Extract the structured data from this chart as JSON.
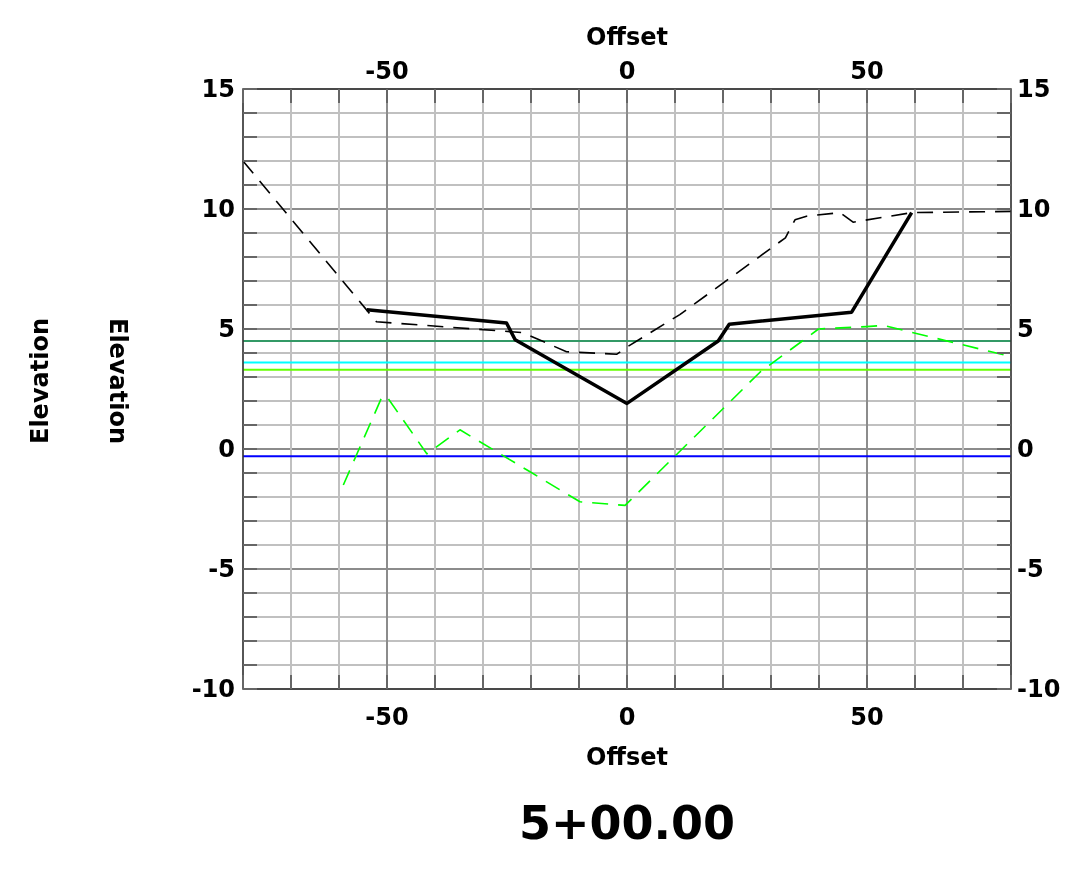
{
  "chart_data": {
    "type": "line",
    "title": "5+00.00",
    "xlabel": "Offset",
    "x2label": "Offset",
    "ylabel": "Elevation",
    "annotations": [
      "Elevation"
    ],
    "xlim": [
      -80,
      80
    ],
    "x2lim": [
      -80,
      80
    ],
    "ylim": [
      -10,
      15
    ],
    "y2lim": [
      -10,
      15
    ],
    "xticks": [
      {
        "value": -80,
        "label": null
      },
      {
        "value": -70,
        "label": null
      },
      {
        "value": -60,
        "label": null
      },
      -50,
      {
        "value": -40,
        "label": null
      },
      {
        "value": -30,
        "label": null
      },
      {
        "value": -20,
        "label": null
      },
      {
        "value": -10,
        "label": null
      },
      0,
      {
        "value": 10,
        "label": null
      },
      {
        "value": 20,
        "label": null
      },
      {
        "value": 30,
        "label": null
      },
      {
        "value": 40,
        "label": null
      },
      50,
      {
        "value": 60,
        "label": null
      },
      {
        "value": 70,
        "label": null
      },
      {
        "value": 80,
        "label": null
      }
    ],
    "x2ticks": [
      {
        "value": -80,
        "label": null
      },
      {
        "value": -70,
        "label": null
      },
      {
        "value": -60,
        "label": null
      },
      -50,
      {
        "value": -40,
        "label": null
      },
      {
        "value": -30,
        "label": null
      },
      {
        "value": -20,
        "label": null
      },
      {
        "value": -10,
        "label": null
      },
      0,
      {
        "value": 10,
        "label": null
      },
      {
        "value": 20,
        "label": null
      },
      {
        "value": 30,
        "label": null
      },
      {
        "value": 40,
        "label": null
      },
      50,
      {
        "value": 60,
        "label": null
      },
      {
        "value": 70,
        "label": null
      },
      {
        "value": 80,
        "label": null
      }
    ],
    "yticks": [
      -10,
      {
        "value": -9,
        "label": null
      },
      {
        "value": -8,
        "label": null
      },
      {
        "value": -7,
        "label": null
      },
      {
        "value": -6,
        "label": null
      },
      -5,
      {
        "value": -4,
        "label": null
      },
      {
        "value": -3,
        "label": null
      },
      {
        "value": -2,
        "label": null
      },
      {
        "value": -1,
        "label": null
      },
      0,
      {
        "value": 1,
        "label": null
      },
      {
        "value": 2,
        "label": null
      },
      {
        "value": 3,
        "label": null
      },
      {
        "value": 4,
        "label": null
      },
      5,
      {
        "value": 6,
        "label": null
      },
      {
        "value": 7,
        "label": null
      },
      {
        "value": 8,
        "label": null
      },
      {
        "value": 9,
        "label": null
      },
      10,
      {
        "value": 11,
        "label": null
      },
      {
        "value": 12,
        "label": null
      },
      {
        "value": 13,
        "label": null
      },
      {
        "value": 14,
        "label": null
      },
      15
    ],
    "y2ticks": [
      -10,
      {
        "value": -9,
        "label": null
      },
      {
        "value": -8,
        "label": null
      },
      {
        "value": -7,
        "label": null
      },
      {
        "value": -6,
        "label": null
      },
      -5,
      {
        "value": -4,
        "label": null
      },
      {
        "value": -3,
        "label": null
      },
      {
        "value": -2,
        "label": null
      },
      {
        "value": -1,
        "label": null
      },
      0,
      {
        "value": 1,
        "label": null
      },
      {
        "value": 2,
        "label": null
      },
      {
        "value": 3,
        "label": null
      },
      {
        "value": 4,
        "label": null
      },
      5,
      {
        "value": 6,
        "label": null
      },
      {
        "value": 7,
        "label": null
      },
      {
        "value": 8,
        "label": null
      },
      {
        "value": 9,
        "label": null
      },
      10,
      {
        "value": 11,
        "label": null
      },
      {
        "value": 12,
        "label": null
      },
      {
        "value": 13,
        "label": null
      },
      {
        "value": 14,
        "label": null
      },
      15
    ],
    "grid": true,
    "series": [
      {
        "color": "#000000",
        "line_style": "solid",
        "x": [
          -54.2,
          -25.1,
          -23.3,
          0,
          19,
          21.3,
          46.8,
          59.3
        ],
        "values": [
          5.8,
          5.25,
          4.55,
          1.9,
          4.5,
          5.2,
          5.7,
          9.85
        ]
      },
      {
        "color": "#000000",
        "line_style": "dashed",
        "x": [
          -80,
          -52.2,
          -21.7,
          -12.6,
          -2.1,
          0,
          11,
          33,
          35,
          37.4,
          44.4,
          47.1,
          59.3,
          80
        ],
        "values": [
          12,
          5.3,
          4.85,
          4.05,
          3.95,
          4.25,
          5.6,
          8.8,
          9.55,
          9.7,
          9.85,
          9.45,
          9.85,
          9.9
        ]
      },
      {
        "color": "#00ff00",
        "line_style": "dashed",
        "x": [
          -59.1,
          -51.1,
          -50.1,
          -41.7,
          -34.8,
          -20.2,
          -9.8,
          -0.4,
          27.7,
          39.9,
          49.9,
          53.4,
          80
        ],
        "values": [
          -1.5,
          2.15,
          2.2,
          -0.2,
          0.8,
          -0.95,
          -2.2,
          -2.35,
          3.2,
          5,
          5.1,
          5.15,
          3.85
        ]
      }
    ],
    "ref_lines": [
      {
        "axis": "y",
        "value": 4.5,
        "color": "#339966"
      },
      {
        "axis": "y",
        "value": 3.6,
        "color": "#00ffff"
      },
      {
        "axis": "y",
        "value": 3.3,
        "color": "#66ff00"
      },
      {
        "axis": "y",
        "value": -0.3,
        "color": "#0000ff"
      }
    ]
  }
}
